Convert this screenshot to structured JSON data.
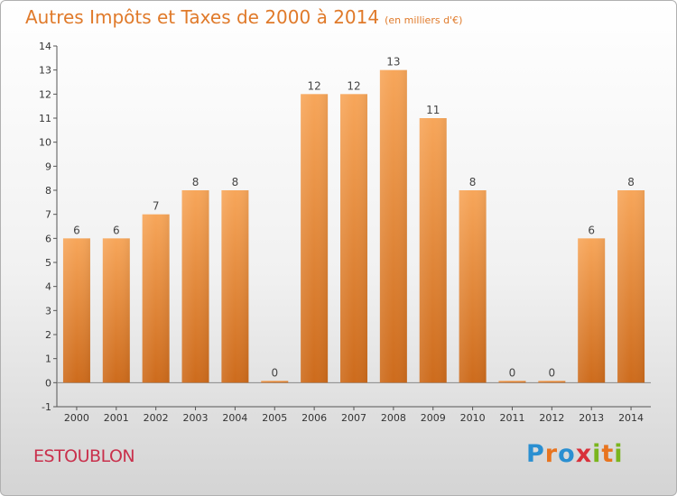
{
  "header": {
    "title": "Autres Impôts et Taxes de 2000 à 2014",
    "subtitle": "(en milliers d'€)"
  },
  "footer": {
    "commune": "ESTOUBLON",
    "logo_text": "Proxiti"
  },
  "colors": {
    "title": "#e07a2a",
    "commune": "#c9304c",
    "bar_top": "#f7a65a",
    "bar_bottom": "#cd6b1c",
    "logo": [
      "#2a8fd1",
      "#e8741f",
      "#2a8fd1",
      "#d9303a",
      "#7ab51d",
      "#e8741f",
      "#7ab51d"
    ]
  },
  "chart_data": {
    "type": "bar",
    "categories": [
      "2000",
      "2001",
      "2002",
      "2003",
      "2004",
      "2005",
      "2006",
      "2007",
      "2008",
      "2009",
      "2010",
      "2011",
      "2012",
      "2013",
      "2014"
    ],
    "values": [
      6,
      6,
      7,
      8,
      8,
      0,
      12,
      12,
      13,
      11,
      8,
      0,
      0,
      6,
      8
    ],
    "data_labels": [
      "6",
      "6",
      "7",
      "8",
      "8",
      "0",
      "12",
      "12",
      "13",
      "11",
      "8",
      "0",
      "0",
      "6",
      "8"
    ],
    "yticks": [
      -1,
      0,
      1,
      2,
      3,
      4,
      5,
      6,
      7,
      8,
      9,
      10,
      11,
      12,
      13,
      14
    ],
    "ylim": [
      -1,
      14
    ],
    "xlabel": "",
    "ylabel": "",
    "grid": false,
    "legend": "none"
  }
}
